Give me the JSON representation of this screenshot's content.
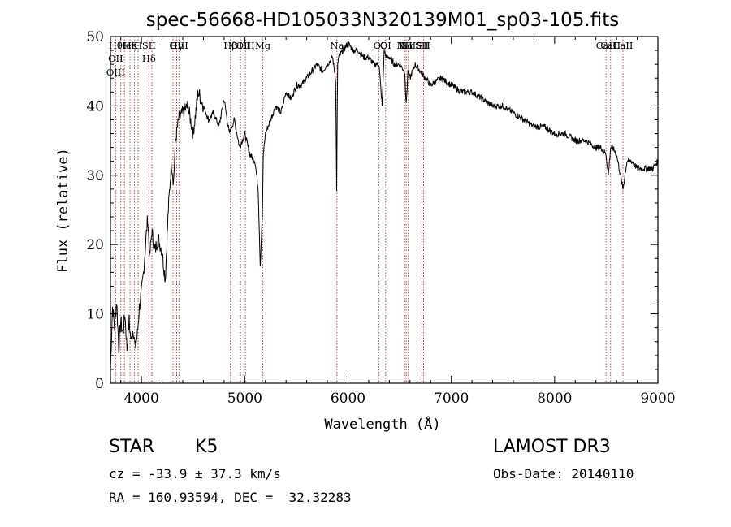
{
  "chart_data": {
    "type": "line",
    "title": "spec-56668-HD105033N320139M01_sp03-105.fits",
    "xlabel": "Wavelength (Å)",
    "ylabel": "Flux (relative)",
    "xlim": [
      3700,
      9000
    ],
    "ylim": [
      0,
      50
    ],
    "x_ticks": [
      4000,
      5000,
      6000,
      7000,
      8000,
      9000
    ],
    "y_ticks": [
      0,
      10,
      20,
      30,
      40,
      50
    ],
    "x_tick_labels": [
      "4000",
      "5000",
      "6000",
      "7000",
      "8000",
      "9000"
    ],
    "y_tick_labels": [
      "0",
      "10",
      "20",
      "30",
      "40",
      "50"
    ],
    "series": [
      {
        "name": "flux",
        "x": [
          3700,
          3720,
          3740,
          3760,
          3780,
          3800,
          3820,
          3840,
          3860,
          3880,
          3900,
          3920,
          3940,
          3960,
          3980,
          4000,
          4020,
          4040,
          4060,
          4080,
          4100,
          4130,
          4160,
          4200,
          4230,
          4260,
          4290,
          4310,
          4330,
          4360,
          4400,
          4450,
          4500,
          4550,
          4600,
          4650,
          4700,
          4750,
          4800,
          4850,
          4900,
          4950,
          5000,
          5050,
          5100,
          5130,
          5150,
          5170,
          5180,
          5200,
          5250,
          5300,
          5350,
          5400,
          5450,
          5500,
          5550,
          5600,
          5650,
          5700,
          5750,
          5800,
          5850,
          5880,
          5890,
          5900,
          5910,
          5950,
          6000,
          6050,
          6100,
          6150,
          6200,
          6250,
          6300,
          6330,
          6350,
          6370,
          6400,
          6450,
          6500,
          6550,
          6563,
          6580,
          6600,
          6650,
          6700,
          6750,
          6800,
          6900,
          7000,
          7100,
          7200,
          7300,
          7400,
          7500,
          7600,
          7700,
          7800,
          7900,
          8000,
          8100,
          8200,
          8300,
          8400,
          8450,
          8498,
          8520,
          8542,
          8560,
          8600,
          8662,
          8700,
          8750,
          8800,
          8850,
          8900,
          8950,
          9000
        ],
        "y": [
          2,
          11,
          8,
          12,
          5,
          9,
          7,
          10,
          5,
          9,
          6,
          8,
          5,
          7,
          11,
          13,
          16,
          20,
          24,
          18,
          22,
          19,
          21,
          19,
          15,
          25,
          32,
          29,
          35,
          38,
          39,
          40,
          36,
          42,
          40,
          38,
          39,
          37,
          41,
          36,
          38,
          34,
          36,
          33,
          32,
          28,
          17,
          24,
          33,
          36,
          38,
          40,
          39,
          42,
          41,
          43,
          43,
          44,
          45,
          46,
          45,
          46,
          47,
          44,
          28,
          46,
          47,
          48,
          49,
          48,
          48,
          47,
          47,
          46,
          46,
          40,
          48,
          47,
          47,
          46,
          46,
          45,
          40,
          45,
          44,
          46,
          45,
          44,
          43,
          44,
          43,
          42,
          42,
          41,
          40,
          40,
          39,
          38,
          37,
          37,
          36,
          36,
          35,
          35,
          34,
          34,
          33,
          30,
          34,
          34,
          33,
          28,
          32,
          32,
          31,
          31,
          31,
          31,
          32
        ]
      }
    ],
    "lines": [
      {
        "wl": 3750,
        "labels": [
          "Hθ",
          "OII",
          "OIII"
        ]
      },
      {
        "wl": 3800,
        "labels": []
      },
      {
        "wl": 3835,
        "labels": [
          "He"
        ]
      },
      {
        "wl": 3889,
        "labels": [
          "Hη"
        ]
      },
      {
        "wl": 3933,
        "labels": [
          "K"
        ]
      },
      {
        "wl": 3968,
        "labels": [
          "H"
        ]
      },
      {
        "wl": 4072,
        "labels": [
          "SII",
          "Hδ"
        ]
      },
      {
        "wl": 4101,
        "labels": []
      },
      {
        "wl": 4305,
        "labels": [
          "G"
        ]
      },
      {
        "wl": 4340,
        "labels": [
          "Hγ"
        ]
      },
      {
        "wl": 4363,
        "labels": [
          "OIII"
        ]
      },
      {
        "wl": 4861,
        "labels": [
          "Hβ"
        ]
      },
      {
        "wl": 4959,
        "labels": [
          "OIII"
        ]
      },
      {
        "wl": 5007,
        "labels": [
          "OIII"
        ]
      },
      {
        "wl": 5175,
        "labels": [
          "Mg"
        ]
      },
      {
        "wl": 5893,
        "labels": [
          "Na"
        ]
      },
      {
        "wl": 6300,
        "labels": [
          "OI"
        ]
      },
      {
        "wl": 6364,
        "labels": [
          "OI"
        ]
      },
      {
        "wl": 6548,
        "labels": [
          "NII"
        ]
      },
      {
        "wl": 6563,
        "labels": [
          "Hα"
        ]
      },
      {
        "wl": 6583,
        "labels": [
          "NII"
        ]
      },
      {
        "wl": 6716,
        "labels": [
          "SII"
        ]
      },
      {
        "wl": 6731,
        "labels": [
          "SII"
        ]
      },
      {
        "wl": 8498,
        "labels": [
          "CaII"
        ]
      },
      {
        "wl": 8542,
        "labels": [
          "CaII"
        ]
      },
      {
        "wl": 8662,
        "labels": [
          "CaII"
        ]
      }
    ]
  },
  "info": {
    "object_class": "STAR",
    "subclass": "K5",
    "cz": "cz = -33.9 ± 37.3 km/s",
    "coords": "RA = 160.93594, DEC =  32.32283",
    "survey": "LAMOST DR3",
    "obs_date": "Obs-Date: 20140110"
  },
  "colors": {
    "line_marker": "#b03030",
    "spectrum": "#000000"
  }
}
